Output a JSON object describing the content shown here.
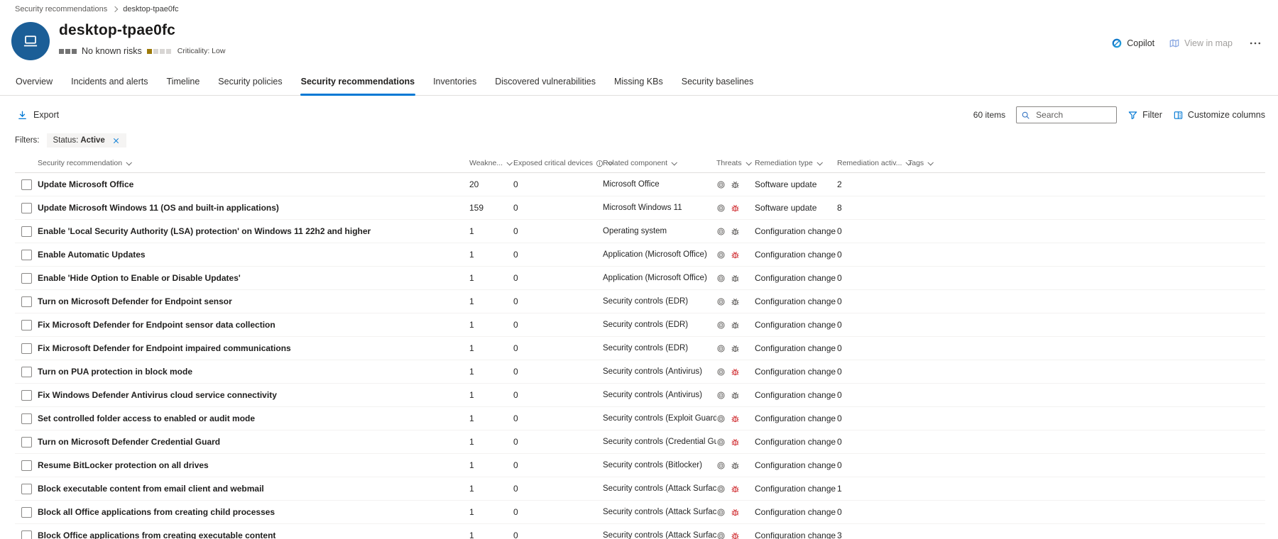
{
  "breadcrumb": {
    "items": [
      "Security recommendations",
      "desktop-tpae0fc"
    ]
  },
  "header": {
    "device_name": "desktop-tpae0fc",
    "risk_label": "No known risks",
    "risk_meter": {
      "count": 3
    },
    "criticality_label": "Criticality: Low",
    "criticality_meter": {
      "filled": 1,
      "total": 4
    },
    "actions": {
      "copilot": "Copilot",
      "view_in_map": "View in map"
    }
  },
  "tabs": {
    "active_index": 4,
    "items": [
      {
        "label": "Overview"
      },
      {
        "label": "Incidents and alerts"
      },
      {
        "label": "Timeline"
      },
      {
        "label": "Security policies"
      },
      {
        "label": "Security recommendations"
      },
      {
        "label": "Inventories"
      },
      {
        "label": "Discovered vulnerabilities"
      },
      {
        "label": "Missing KBs"
      },
      {
        "label": "Security baselines"
      }
    ]
  },
  "toolbar": {
    "export_label": "Export",
    "items_count": "60 items",
    "search_placeholder": "Search",
    "filter_label": "Filter",
    "customize_label": "Customize columns"
  },
  "filters": {
    "label": "Filters:",
    "chips": [
      {
        "field": "Status:",
        "value": "Active"
      }
    ]
  },
  "table": {
    "columns": [
      {
        "key": "security-recommendation",
        "label": "Security recommendation"
      },
      {
        "key": "weaknesses",
        "label": "Weakne..."
      },
      {
        "key": "exposed-critical-devices",
        "label": "Exposed critical devices",
        "info": true
      },
      {
        "key": "related-component",
        "label": "Related component"
      },
      {
        "key": "threats",
        "label": "Threats"
      },
      {
        "key": "remediation-type",
        "label": "Remediation type"
      },
      {
        "key": "remediation-activities",
        "label": "Remediation activ..."
      },
      {
        "key": "tags",
        "label": "Tags"
      }
    ],
    "rows": [
      {
        "name": "Update Microsoft Office",
        "weaknesses": "20",
        "exposed_critical_devices": "0",
        "related_component": "Microsoft Office",
        "has_active_threat": false,
        "remediation_type": "Software update",
        "remediation_activities": "2",
        "tags": ""
      },
      {
        "name": "Update Microsoft Windows 11 (OS and built-in applications)",
        "weaknesses": "159",
        "exposed_critical_devices": "0",
        "related_component": "Microsoft Windows 11",
        "has_active_threat": true,
        "remediation_type": "Software update",
        "remediation_activities": "8",
        "tags": ""
      },
      {
        "name": "Enable 'Local Security Authority (LSA) protection' on Windows 11 22h2 and higher",
        "weaknesses": "1",
        "exposed_critical_devices": "0",
        "related_component": "Operating system",
        "has_active_threat": false,
        "remediation_type": "Configuration change",
        "remediation_activities": "0",
        "tags": ""
      },
      {
        "name": "Enable Automatic Updates",
        "weaknesses": "1",
        "exposed_critical_devices": "0",
        "related_component": "Application (Microsoft Office)",
        "has_active_threat": true,
        "remediation_type": "Configuration change",
        "remediation_activities": "0",
        "tags": ""
      },
      {
        "name": "Enable 'Hide Option to Enable or Disable Updates'",
        "weaknesses": "1",
        "exposed_critical_devices": "0",
        "related_component": "Application (Microsoft Office)",
        "has_active_threat": false,
        "remediation_type": "Configuration change",
        "remediation_activities": "0",
        "tags": ""
      },
      {
        "name": "Turn on Microsoft Defender for Endpoint sensor",
        "weaknesses": "1",
        "exposed_critical_devices": "0",
        "related_component": "Security controls (EDR)",
        "has_active_threat": false,
        "remediation_type": "Configuration change",
        "remediation_activities": "0",
        "tags": ""
      },
      {
        "name": "Fix Microsoft Defender for Endpoint sensor data collection",
        "weaknesses": "1",
        "exposed_critical_devices": "0",
        "related_component": "Security controls (EDR)",
        "has_active_threat": false,
        "remediation_type": "Configuration change",
        "remediation_activities": "0",
        "tags": ""
      },
      {
        "name": "Fix Microsoft Defender for Endpoint impaired communications",
        "weaknesses": "1",
        "exposed_critical_devices": "0",
        "related_component": "Security controls (EDR)",
        "has_active_threat": false,
        "remediation_type": "Configuration change",
        "remediation_activities": "0",
        "tags": ""
      },
      {
        "name": "Turn on PUA protection in block mode",
        "weaknesses": "1",
        "exposed_critical_devices": "0",
        "related_component": "Security controls (Antivirus)",
        "has_active_threat": true,
        "remediation_type": "Configuration change",
        "remediation_activities": "0",
        "tags": ""
      },
      {
        "name": "Fix Windows Defender Antivirus cloud service connectivity",
        "weaknesses": "1",
        "exposed_critical_devices": "0",
        "related_component": "Security controls (Antivirus)",
        "has_active_threat": false,
        "remediation_type": "Configuration change",
        "remediation_activities": "0",
        "tags": ""
      },
      {
        "name": "Set controlled folder access to enabled or audit mode",
        "weaknesses": "1",
        "exposed_critical_devices": "0",
        "related_component": "Security controls (Exploit Guard)",
        "has_active_threat": true,
        "remediation_type": "Configuration change",
        "remediation_activities": "0",
        "tags": ""
      },
      {
        "name": "Turn on Microsoft Defender Credential Guard",
        "weaknesses": "1",
        "exposed_critical_devices": "0",
        "related_component": "Security controls (Credential Guard)",
        "has_active_threat": true,
        "remediation_type": "Configuration change",
        "remediation_activities": "0",
        "tags": ""
      },
      {
        "name": "Resume BitLocker protection on all drives",
        "weaknesses": "1",
        "exposed_critical_devices": "0",
        "related_component": "Security controls (Bitlocker)",
        "has_active_threat": false,
        "remediation_type": "Configuration change",
        "remediation_activities": "0",
        "tags": ""
      },
      {
        "name": "Block executable content from email client and webmail",
        "weaknesses": "1",
        "exposed_critical_devices": "0",
        "related_component": "Security controls (Attack Surface Redu...",
        "has_active_threat": true,
        "remediation_type": "Configuration change",
        "remediation_activities": "1",
        "tags": ""
      },
      {
        "name": "Block all Office applications from creating child processes",
        "weaknesses": "1",
        "exposed_critical_devices": "0",
        "related_component": "Security controls (Attack Surface Redu...",
        "has_active_threat": true,
        "remediation_type": "Configuration change",
        "remediation_activities": "0",
        "tags": ""
      },
      {
        "name": "Block Office applications from creating executable content",
        "weaknesses": "1",
        "exposed_critical_devices": "0",
        "related_component": "Security controls (Attack Surface Redu...",
        "has_active_threat": true,
        "remediation_type": "Configuration change",
        "remediation_activities": "3",
        "tags": ""
      }
    ]
  },
  "colors": {
    "accent": "#0078d4",
    "active_threat": "#d13438",
    "inactive_icon": "#605e5c",
    "avatar_bg": "#1b5e97",
    "meter_gray": "#737373",
    "criticality_filled": "#9d7a0a",
    "meter_empty": "#d8d6d4"
  }
}
